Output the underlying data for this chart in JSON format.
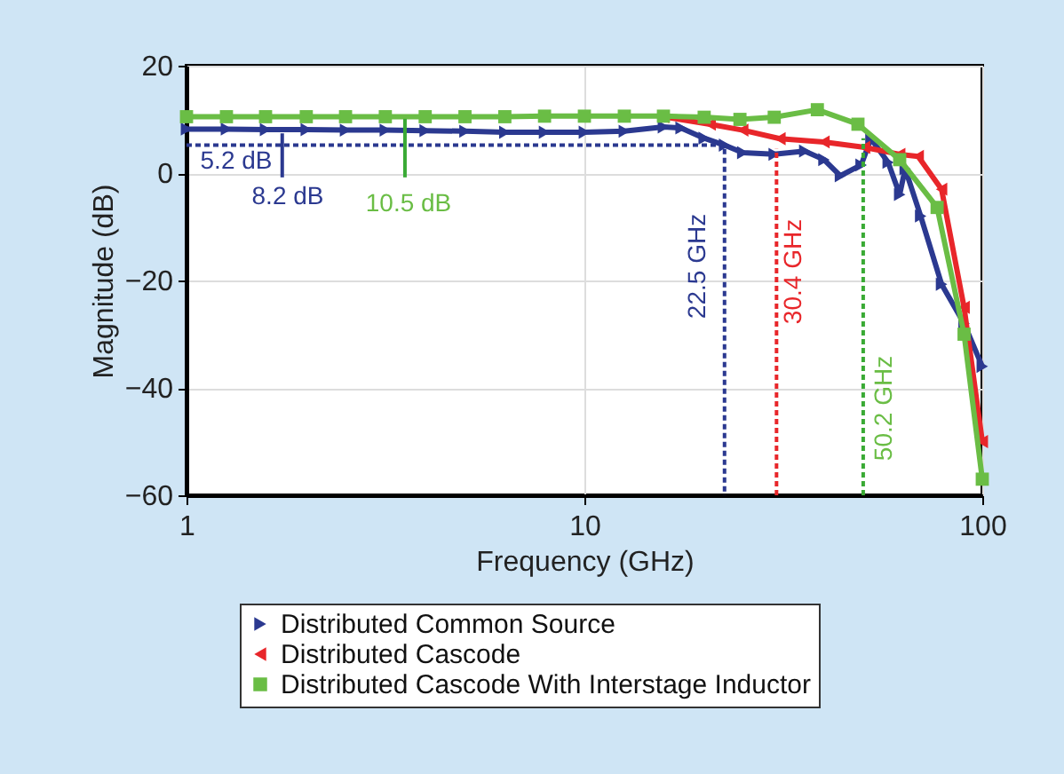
{
  "chart_data": {
    "type": "line",
    "xlabel": "Frequency (GHz)",
    "ylabel": "Magnitude (dB)",
    "log": "x",
    "xlim": [
      1,
      100
    ],
    "xticks": [
      1,
      10,
      100
    ],
    "ylim": [
      -60,
      20
    ],
    "yticks": [
      -60,
      -40,
      -20,
      0,
      20
    ],
    "grid": true,
    "legend": "bottom",
    "series": [
      {
        "name": "Distributed Common Source",
        "color": "#2b3990",
        "marker": "triangle",
        "x": [
          1,
          1.26,
          1.58,
          2,
          2.51,
          3.16,
          3.98,
          5.01,
          6.31,
          7.94,
          10,
          12.6,
          15.8,
          17.5,
          20,
          22.5,
          25,
          30,
          35.8,
          40,
          44,
          49.6,
          52.5,
          58,
          62,
          64,
          70,
          79,
          90,
          100
        ],
        "values": [
          8.2,
          8.2,
          8.1,
          8.1,
          8,
          8,
          7.9,
          7.8,
          7.6,
          7.6,
          7.6,
          7.8,
          8.6,
          8.4,
          6.5,
          5.2,
          3.8,
          3.5,
          4.1,
          2.5,
          -0.5,
          1.5,
          6.4,
          2,
          -4,
          0.8,
          -8,
          -20.7,
          -28,
          -36
        ]
      },
      {
        "name": "Distributed Cascode",
        "color": "#e8262a",
        "marker": "triangle",
        "x": [
          15.8,
          20.7,
          25,
          31,
          40,
          50.6,
          62,
          69,
          79,
          90,
          100
        ],
        "values": [
          10.5,
          9.1,
          8,
          6.4,
          5.8,
          4.8,
          3.5,
          3.1,
          -3,
          -25,
          -50
        ]
      },
      {
        "name": "Distributed Cascode With Interstage Inductor",
        "color": "#6abd45",
        "marker": "square",
        "x": [
          1,
          1.26,
          1.58,
          2,
          2.51,
          3.16,
          3.98,
          5.01,
          6.31,
          7.94,
          10,
          12.6,
          15.8,
          20,
          24.6,
          30,
          38.5,
          48.7,
          62,
          77,
          90,
          100
        ],
        "values": [
          10.5,
          10.5,
          10.5,
          10.5,
          10.5,
          10.5,
          10.5,
          10.5,
          10.5,
          10.6,
          10.6,
          10.6,
          10.6,
          10.4,
          10,
          10.4,
          11.8,
          9.1,
          2.5,
          -6.4,
          -30,
          -57
        ]
      },
      {
        "color": "#2b3990",
        "line_style": "dashed",
        "marker": "none",
        "x": [
          1,
          22.5,
          22.5
        ],
        "values": [
          5.2,
          5.2,
          -60
        ]
      },
      {
        "color": "#e8262a",
        "line_style": "dashed",
        "marker": "none",
        "x": [
          30.4,
          30.4
        ],
        "values": [
          -60,
          4.5
        ]
      },
      {
        "color": "#3aaa35",
        "line_style": "dashed",
        "marker": "none",
        "x": [
          50.2,
          50.2
        ],
        "values": [
          -60,
          6.5
        ]
      },
      {
        "color": "#2b3990",
        "line_style": "solid",
        "marker": "none",
        "x": [
          1.74,
          1.74
        ],
        "values": [
          -0.8,
          7.4
        ]
      },
      {
        "color": "#3aaa35",
        "line_style": "solid",
        "marker": "none",
        "x": [
          3.54,
          3.54
        ],
        "values": [
          -0.8,
          10.1
        ]
      }
    ],
    "annotations": [
      "5.2 dB",
      "8.2 dB",
      "10.5 dB",
      "22.5 GHz",
      "30.4 GHz",
      "50.2 GHz"
    ]
  }
}
